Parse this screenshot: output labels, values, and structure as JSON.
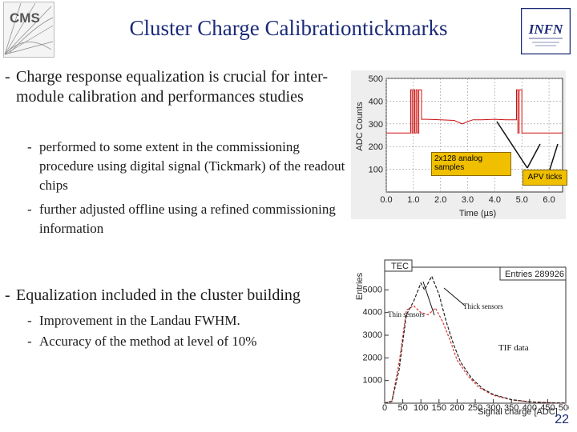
{
  "title": "Cluster Charge Calibrationtickmarks",
  "logos": {
    "cms": "CMS",
    "infn": "INFN"
  },
  "bullets": [
    {
      "text": "Charge response equalization is crucial for inter-module calibration and performances studies",
      "subs": [
        "performed to some extent in the commissioning procedure using digital signal (Tickmark) of the readout chips",
        "further adjusted offline using a refined commissioning information"
      ]
    },
    {
      "text": "Equalization included in the cluster building",
      "subs": [
        "Improvement in the Landau FWHM.",
        "Accuracy of the method at level of 10%"
      ]
    }
  ],
  "chart_data": [
    {
      "type": "line",
      "xlabel": "Time (µs)",
      "ylabel": "ADC Counts",
      "xlim": [
        0,
        6.5
      ],
      "ylim": [
        0,
        500
      ],
      "xticks": [
        "0.0",
        "1.0",
        "2.0",
        "3.0",
        "4.0",
        "5.0",
        "6.0"
      ],
      "yticks": [
        "100",
        "200",
        "300",
        "400",
        "500"
      ],
      "annotations": [
        "2x128 analog samples",
        "APV ticks"
      ],
      "colors": {
        "line": "#cc1111",
        "box": "#f0c000"
      },
      "series": [
        {
          "x": [
            0.0,
            0.9,
            0.9,
            0.95,
            0.95,
            1.0,
            1.0,
            1.05,
            1.05,
            1.1,
            1.1,
            1.15,
            1.15,
            1.2,
            1.2,
            1.3,
            1.3,
            1.5,
            2.0,
            2.5,
            2.8,
            2.9,
            3.0,
            3.2,
            3.5,
            4.0,
            4.4,
            4.8,
            4.8,
            4.85,
            4.85,
            4.9,
            4.9,
            5.0,
            5.0,
            5.05,
            5.05,
            6.5
          ],
          "y": [
            260,
            260,
            450,
            450,
            260,
            260,
            450,
            450,
            260,
            260,
            450,
            450,
            260,
            260,
            450,
            450,
            320,
            320,
            318,
            315,
            300,
            305,
            310,
            318,
            318,
            320,
            318,
            318,
            450,
            450,
            260,
            260,
            450,
            450,
            260,
            260,
            260,
            260
          ]
        }
      ]
    },
    {
      "type": "line",
      "title": "TEC",
      "xlabel": "Signal charge [ADC]",
      "ylabel": "Entries",
      "xlim": [
        0,
        500
      ],
      "ylim": [
        0,
        6000
      ],
      "xticks": [
        "0",
        "50",
        "100",
        "150",
        "200",
        "250",
        "300",
        "350",
        "400",
        "450",
        "500"
      ],
      "yticks": [
        "1000",
        "2000",
        "3000",
        "4000",
        "5000"
      ],
      "stats": "Entries 289926",
      "annotations": [
        "Thin sensors",
        "Thick sensors",
        "TIF data"
      ],
      "colors": {
        "thin": "#dd3333",
        "thick": "#222222"
      },
      "series": [
        {
          "name": "Thin sensors",
          "x": [
            0,
            20,
            40,
            60,
            80,
            100,
            120,
            140,
            160,
            180,
            200,
            230,
            260,
            300,
            350,
            400,
            450,
            500
          ],
          "y": [
            0,
            100,
            1800,
            4100,
            4300,
            4000,
            3900,
            4200,
            3600,
            2800,
            1900,
            1200,
            700,
            350,
            150,
            60,
            20,
            5
          ]
        },
        {
          "name": "Thick sensors",
          "x": [
            0,
            20,
            40,
            60,
            80,
            100,
            110,
            130,
            150,
            170,
            190,
            210,
            240,
            270,
            300,
            350,
            400,
            450,
            500
          ],
          "y": [
            0,
            80,
            1500,
            3900,
            4500,
            5300,
            5000,
            5600,
            4800,
            3600,
            2600,
            1800,
            1100,
            650,
            380,
            160,
            60,
            20,
            5
          ]
        }
      ]
    }
  ],
  "page_number": "22"
}
